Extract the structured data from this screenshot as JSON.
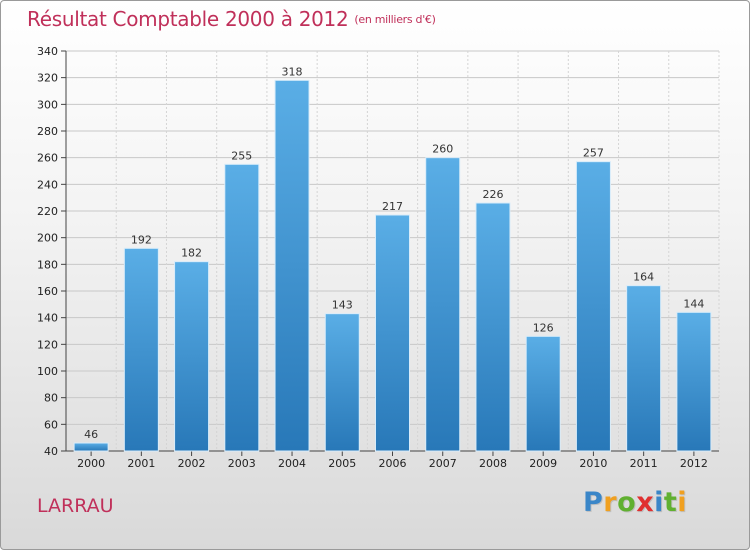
{
  "header": {
    "title": "Résultat Comptable 2000 à 2012",
    "unit": "(en milliers d'€)"
  },
  "commune": "LARRAU",
  "logo": {
    "letters": [
      "P",
      "r",
      "o",
      "x",
      "i",
      "t",
      "i"
    ]
  },
  "colors": {
    "title": "#c0305a",
    "bar_light": "#5aaee6",
    "bar_dark": "#2878b8",
    "logo": [
      "#3a86c8",
      "#f0a020",
      "#60b030",
      "#e03030",
      "#3a86c8",
      "#60b030",
      "#f0a020"
    ]
  },
  "chart_data": {
    "type": "bar",
    "title": "Résultat Comptable 2000 à 2012",
    "xlabel": "",
    "ylabel": "en milliers d'€",
    "categories": [
      "2000",
      "2001",
      "2002",
      "2003",
      "2004",
      "2005",
      "2006",
      "2007",
      "2008",
      "2009",
      "2010",
      "2011",
      "2012"
    ],
    "values": [
      46,
      192,
      182,
      255,
      318,
      143,
      217,
      260,
      226,
      126,
      257,
      164,
      144
    ],
    "ylim": [
      40,
      340
    ],
    "yticks": [
      40,
      60,
      80,
      100,
      120,
      140,
      160,
      180,
      200,
      220,
      240,
      260,
      280,
      300,
      320,
      340
    ],
    "grid": true
  }
}
